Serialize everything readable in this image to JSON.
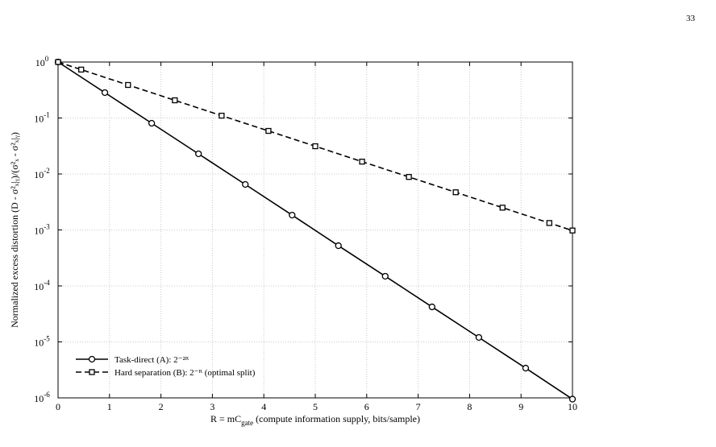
{
  "page_number": "33",
  "chart_data": {
    "type": "line",
    "xlabel": [
      "R = mC",
      "gate",
      " (compute information supply, bits/sample)"
    ],
    "ylabel": "Normalized excess distortion (D - σ²ₓ|ᵧ)/(σ²ₓ - σ²ₓ|ᵧ)",
    "log_y": true,
    "grid": true,
    "legend": "lower left",
    "xlim": [
      0,
      10
    ],
    "xticks": [
      0,
      1,
      2,
      3,
      4,
      5,
      6,
      7,
      8,
      9,
      10
    ],
    "ylim": [
      1e-06,
      1
    ],
    "yticks": [
      {
        "value": 1e-06,
        "label": "10",
        "exponent": "-6"
      },
      {
        "value": 1e-05,
        "label": "10",
        "exponent": "-5"
      },
      {
        "value": 0.0001,
        "label": "10",
        "exponent": "-4"
      },
      {
        "value": 0.001,
        "label": "10",
        "exponent": "-3"
      },
      {
        "value": 0.01,
        "label": "10",
        "exponent": "-2"
      },
      {
        "value": 0.1,
        "label": "10",
        "exponent": "-1"
      },
      {
        "value": 1,
        "label": "10",
        "exponent": "0"
      }
    ],
    "series": [
      {
        "name": "Task-direct (A): 2⁻²ᴿ",
        "color": "#000000",
        "dash": "solid",
        "marker": "circle",
        "x": [
          0,
          0.91,
          1.82,
          2.73,
          3.64,
          4.55,
          5.45,
          6.36,
          7.27,
          8.18,
          9.09,
          10
        ],
        "values": [
          1,
          0.284,
          0.0806,
          0.0229,
          0.0065,
          0.00184,
          0.000523,
          0.000149,
          4.22e-05,
          1.2e-05,
          3.4e-06,
          9.5e-07
        ]
      },
      {
        "name": "Hard separation (B): 2⁻ᴿ (optimal split)",
        "color": "#000000",
        "dash": "dashed",
        "marker": "square",
        "x": [
          0,
          0.45,
          1.36,
          2.27,
          3.18,
          4.09,
          5,
          5.91,
          6.82,
          7.73,
          8.64,
          9.55,
          10
        ],
        "values": [
          1,
          0.732,
          0.389,
          0.207,
          0.11,
          0.0588,
          0.0313,
          0.0166,
          0.00885,
          0.00471,
          0.0025,
          0.00133,
          0.000977
        ]
      }
    ]
  }
}
